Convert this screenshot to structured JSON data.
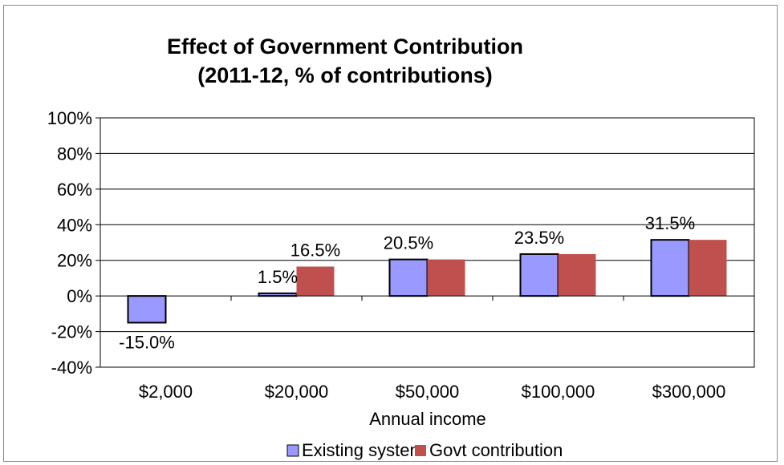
{
  "chart_data": {
    "type": "bar",
    "title_lines": [
      "Effect of Government Contribution",
      "(2011-12, % of contributions)"
    ],
    "xlabel": "Annual income",
    "ylabel": "",
    "categories": [
      "$2,000",
      "$20,000",
      "$50,000",
      "$100,000",
      "$300,000"
    ],
    "ylim": [
      -40,
      100
    ],
    "yticks": [
      100,
      80,
      60,
      40,
      20,
      0,
      -20,
      -40
    ],
    "ytick_labels": [
      "100%",
      "80%",
      "60%",
      "40%",
      "20%",
      "0%",
      "-20%",
      "-40%"
    ],
    "grid": true,
    "legend_position": "bottom",
    "series": [
      {
        "name": "Existing system",
        "color": "#9999ff",
        "values": [
          -15.0,
          1.5,
          20.5,
          23.5,
          31.5
        ],
        "data_labels": [
          "-15.0%",
          "1.5%",
          "20.5%",
          "23.5%",
          "31.5%"
        ]
      },
      {
        "name": "Govt contribution",
        "color": "#c0504d",
        "values": [
          0,
          16.5,
          20.5,
          23.5,
          31.5
        ],
        "data_labels": [
          "",
          "16.5%",
          "",
          "",
          ""
        ]
      }
    ]
  }
}
